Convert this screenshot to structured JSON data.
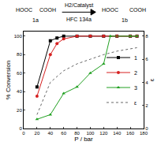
{
  "chart_data": {
    "type": "line",
    "xlabel": "P / bar",
    "ylabel": "% Conversion",
    "y2label": "ε",
    "xlim": [
      0,
      180
    ],
    "xticks": [
      0,
      20,
      40,
      60,
      80,
      100,
      120,
      140,
      160,
      180
    ],
    "ylim": [
      0,
      105
    ],
    "yticks": [
      0,
      20,
      40,
      60,
      80,
      100
    ],
    "y2lim": [
      0,
      8.4
    ],
    "y2ticks": [
      0,
      2,
      4,
      6,
      8
    ],
    "legend": "right",
    "grid": false,
    "scheme": {
      "reactant": "1a",
      "product": "1b",
      "reagent": "H2/Catalyst",
      "solvent": "HFC 134a",
      "left_groups": [
        "HOOC",
        "COOH"
      ],
      "right_groups": [
        "HOOC",
        "COOH"
      ]
    },
    "series": [
      {
        "name": "1",
        "color": "#000000",
        "marker": "square",
        "line_style": "solid",
        "x": [
          20,
          40,
          50,
          60,
          80,
          100,
          120,
          140,
          160,
          170
        ],
        "values": [
          45,
          95,
          98,
          100,
          100,
          100,
          100,
          100,
          100,
          100
        ]
      },
      {
        "name": "2",
        "color": "#d62020",
        "marker": "circle",
        "line_style": "solid",
        "x": [
          20,
          40,
          50,
          60,
          80,
          100,
          120,
          140,
          160,
          170
        ],
        "values": [
          35,
          80,
          92,
          97,
          100,
          100,
          100,
          100,
          100,
          100
        ]
      },
      {
        "name": "3",
        "color": "#20a020",
        "marker": "triangle-up",
        "line_style": "solid",
        "x": [
          20,
          40,
          60,
          80,
          100,
          120,
          130,
          160,
          170
        ],
        "values": [
          10,
          15,
          38,
          45,
          60,
          70,
          100,
          100,
          100
        ]
      },
      {
        "name": "ε",
        "color": "#666666",
        "marker": "none",
        "line_style": "dot",
        "axis": "y2",
        "x": [
          20,
          40,
          60,
          80,
          100,
          120,
          140,
          160,
          170
        ],
        "values": [
          1.2,
          4.0,
          5.0,
          5.6,
          6.0,
          6.4,
          6.7,
          6.9,
          7.0
        ]
      }
    ]
  }
}
